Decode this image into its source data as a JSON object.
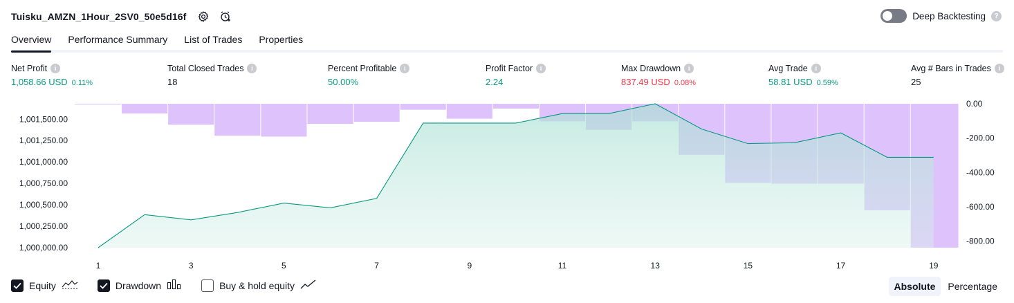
{
  "header": {
    "title": "Tuisku_AMZN_1Hour_2SV0_50e5d16f",
    "deep_backtesting_label": "Deep Backtesting"
  },
  "tabs": [
    {
      "label": "Overview"
    },
    {
      "label": "Performance Summary"
    },
    {
      "label": "List of Trades"
    },
    {
      "label": "Properties"
    }
  ],
  "metrics": [
    {
      "label": "Net Profit",
      "value": "1,058.66 USD",
      "pct": "0.11%",
      "color": "#089981"
    },
    {
      "label": "Total Closed Trades",
      "value": "18",
      "pct": "",
      "color": "#131722"
    },
    {
      "label": "Percent Profitable",
      "value": "50.00%",
      "pct": "",
      "color": "#089981"
    },
    {
      "label": "Profit Factor",
      "value": "2.24",
      "pct": "",
      "color": "#089981"
    },
    {
      "label": "Max Drawdown",
      "value": "837.49 USD",
      "pct": "0.08%",
      "color": "#f23645"
    },
    {
      "label": "Avg Trade",
      "value": "58.81 USD",
      "pct": "0.59%",
      "color": "#089981"
    },
    {
      "label": "Avg # Bars in Trades",
      "value": "25",
      "pct": "",
      "color": "#131722"
    }
  ],
  "legend": {
    "equity_label": "Equity",
    "drawdown_label": "Drawdown",
    "buyhold_label": "Buy & hold equity"
  },
  "mode": {
    "absolute_label": "Absolute",
    "percentage_label": "Percentage"
  },
  "chart_data": {
    "type": "area",
    "x_ticks": [
      "1",
      "3",
      "5",
      "7",
      "9",
      "11",
      "13",
      "15",
      "17",
      "19"
    ],
    "left_ticks": [
      "1,001,500.00",
      "1,001,250.00",
      "1,001,000.00",
      "1,000,750.00",
      "1,000,500.00",
      "1,000,250.00",
      "1,000,000.00"
    ],
    "right_ticks": [
      "0.00",
      "-200.00",
      "-400.00",
      "-600.00",
      "-800.00"
    ],
    "equity_ylim": [
      1000000,
      1001680
    ],
    "drawdown_ylim": [
      -837.49,
      0
    ],
    "series": [
      {
        "name": "Equity",
        "color": "#089981",
        "x": [
          1,
          2,
          3,
          4,
          5,
          6,
          7,
          8,
          9,
          10,
          11,
          12,
          13,
          14,
          15,
          16,
          17,
          18,
          19
        ],
        "values": [
          1000000,
          1000385,
          1000325,
          1000410,
          1000520,
          1000465,
          1000575,
          1001455,
          1001455,
          1001455,
          1001565,
          1001565,
          1001680,
          1001385,
          1001215,
          1001225,
          1001340,
          1001055,
          1001055
        ]
      },
      {
        "name": "Drawdown",
        "color": "#d1aefb",
        "x": [
          1,
          2,
          3,
          4,
          5,
          6,
          7,
          8,
          9,
          10,
          11,
          12,
          13,
          14,
          15,
          16,
          17,
          18,
          19
        ],
        "values": [
          -2,
          -57,
          -122,
          -186,
          -191,
          -117,
          -105,
          -35,
          -87,
          -28,
          -102,
          -152,
          -102,
          -297,
          -460,
          -465,
          -465,
          -620,
          -837.49
        ]
      }
    ]
  }
}
